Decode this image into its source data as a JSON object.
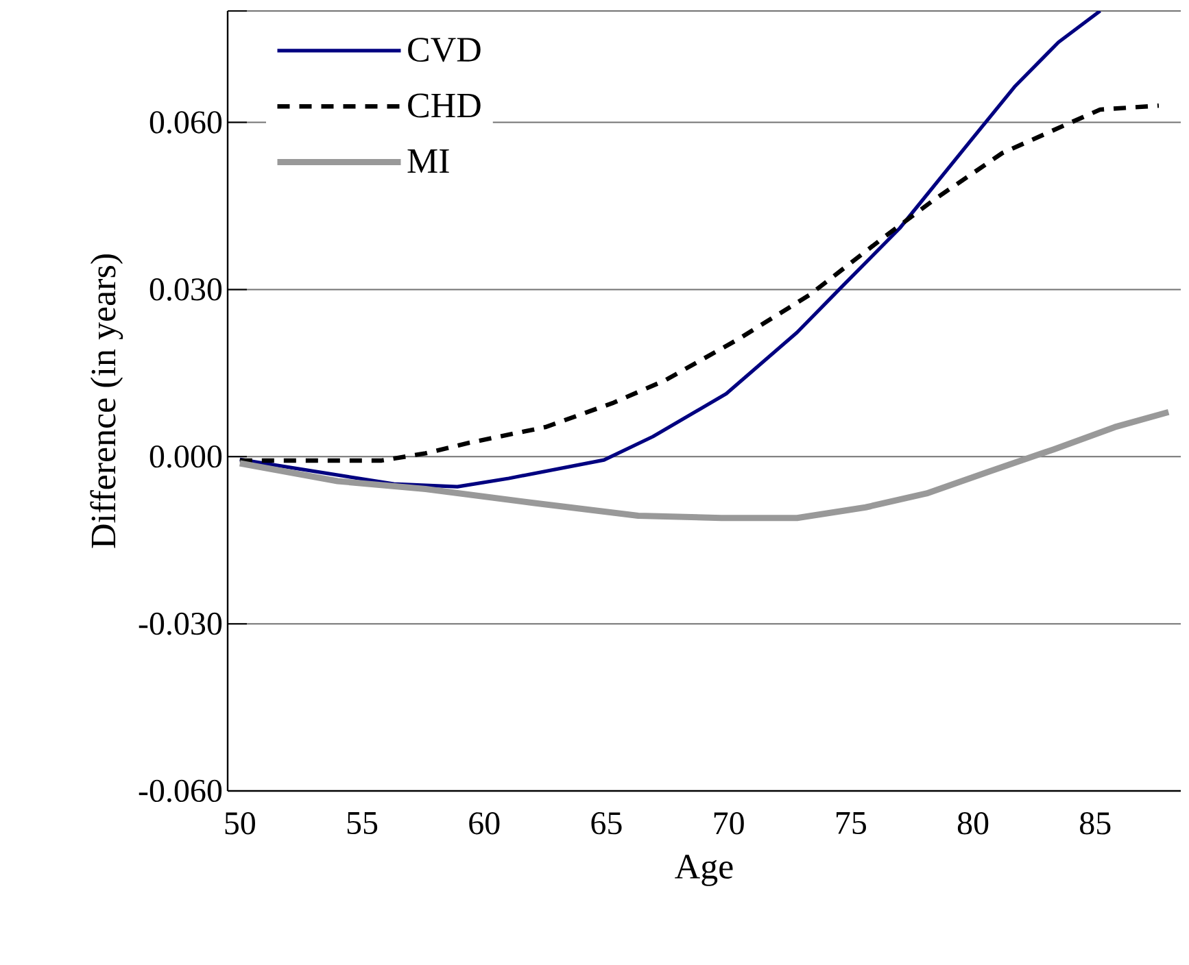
{
  "chart_data": {
    "type": "line",
    "xlabel": "Age",
    "ylabel": "Difference (in years)",
    "xlim": [
      49.5,
      88.5
    ],
    "ylim": [
      -0.06,
      0.08
    ],
    "xticks": [
      50,
      55,
      60,
      65,
      70,
      75,
      80,
      85
    ],
    "yticks": [
      {
        "value": -0.06,
        "label": "-0.060"
      },
      {
        "value": -0.03,
        "label": "-0.030"
      },
      {
        "value": 0,
        "label": "0.000"
      },
      {
        "value": 0.03,
        "label": "0.030"
      },
      {
        "value": 0.06,
        "label": "0.060"
      },
      {
        "value": 0.08,
        "label": null
      }
    ],
    "grid": "y",
    "legend": "top left",
    "series": [
      {
        "name": "CVD",
        "color": "#000080",
        "line_style": "solid",
        "x": [
          50,
          56.3,
          58.9,
          61.0,
          64.9,
          66.9,
          69.9,
          72.8,
          74.7,
          77.0,
          79.9,
          81.7,
          83.5,
          85.2
        ],
        "values": [
          -0.0005,
          -0.0049,
          -0.0054,
          -0.0039,
          -0.0006,
          0.0036,
          0.0113,
          0.0223,
          0.0308,
          0.041,
          0.0567,
          0.0664,
          0.0744,
          0.08
        ]
      },
      {
        "name": "CHD",
        "color": "#000000",
        "line_style": "dashed",
        "x": [
          50,
          55.8,
          57.6,
          59.4,
          62.5,
          65.3,
          67.4,
          70.4,
          73.3,
          76.3,
          78.4,
          81.2,
          83.5,
          85.2,
          87.6
        ],
        "values": [
          -0.0007,
          -0.0007,
          0.0006,
          0.0025,
          0.0053,
          0.0097,
          0.0137,
          0.0211,
          0.029,
          0.0392,
          0.0461,
          0.0545,
          0.059,
          0.0623,
          0.063
        ]
      },
      {
        "name": "MI",
        "color": "#999999",
        "line_style": "solid",
        "x": [
          50,
          54.0,
          57.6,
          62.0,
          66.3,
          69.7,
          72.8,
          75.6,
          78.1,
          80.7,
          83.3,
          85.8,
          88
        ],
        "values": [
          -0.0012,
          -0.0044,
          -0.0058,
          -0.0083,
          -0.0106,
          -0.011,
          -0.011,
          -0.0091,
          -0.0066,
          -0.0026,
          0.0013,
          0.0053,
          0.008
        ]
      }
    ]
  }
}
